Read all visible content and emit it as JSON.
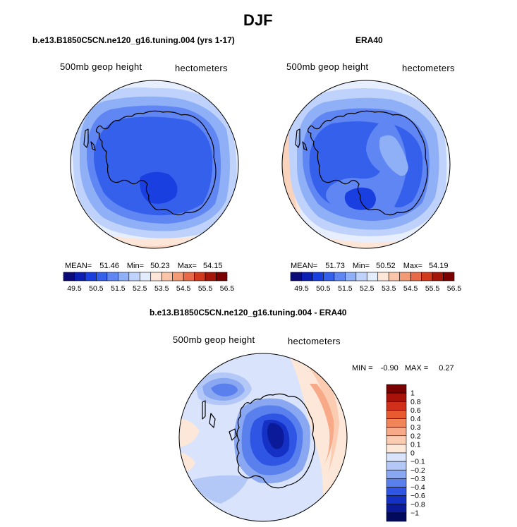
{
  "main_title": "DJF",
  "panels": [
    {
      "title": "b.e13.B1850C5CN.ne120_g16.tuning.004 (yrs 1-17)",
      "variable_label": "500mb geop height",
      "units_label": "hectometers",
      "stats": {
        "mean_label": "MEAN=",
        "mean": "51.46",
        "min_label": "Min=",
        "min": "50.23",
        "max_label": "Max=",
        "max": "54.15"
      }
    },
    {
      "title": "ERA40",
      "variable_label": "500mb geop height",
      "units_label": "hectometers",
      "stats": {
        "mean_label": "MEAN=",
        "mean": "51.73",
        "min_label": "Min=",
        "min": "50.52",
        "max_label": "Max=",
        "max": "54.19"
      }
    },
    {
      "title": "b.e13.B1850C5CN.ne120_g16.tuning.004 - ERA40",
      "variable_label": "500mb geop height",
      "units_label": "hectometers",
      "stats": {
        "min_label": "MIN =",
        "min": "-0.90",
        "max_label": "MAX =",
        "max": "0.27"
      }
    }
  ],
  "colorbar_abs": {
    "tick_labels": [
      "49.5",
      "50.5",
      "51.5",
      "52.5",
      "53.5",
      "54.5",
      "55.5",
      "56.5"
    ],
    "colors": [
      "#0a0a78",
      "#0b1eb4",
      "#1a3fe0",
      "#3560ec",
      "#5f86f2",
      "#8fb0f6",
      "#bed2fb",
      "#e3ecfd",
      "#fde6d8",
      "#f9c4a8",
      "#f39a76",
      "#e86a48",
      "#d23a1e",
      "#a41608",
      "#7a0000"
    ]
  },
  "colorbar_diff": {
    "labels": [
      "1",
      "0.8",
      "0.6",
      "0.4",
      "0.3",
      "0.2",
      "0.1",
      "0",
      "−0.1",
      "−0.2",
      "−0.3",
      "−0.4",
      "−0.6",
      "−0.8",
      "−1"
    ],
    "colors": [
      "#7a0000",
      "#a81208",
      "#d0301a",
      "#e85a30",
      "#f0855a",
      "#f7a988",
      "#fbcbb2",
      "#fde7d8",
      "#d9e4fc",
      "#b4c8f8",
      "#8aa8f2",
      "#5a80ee",
      "#2e55e4",
      "#1530c4",
      "#0a1a98",
      "#020a5e"
    ]
  },
  "colors": {
    "continent_outline": "#000000",
    "background": "#ffffff"
  }
}
